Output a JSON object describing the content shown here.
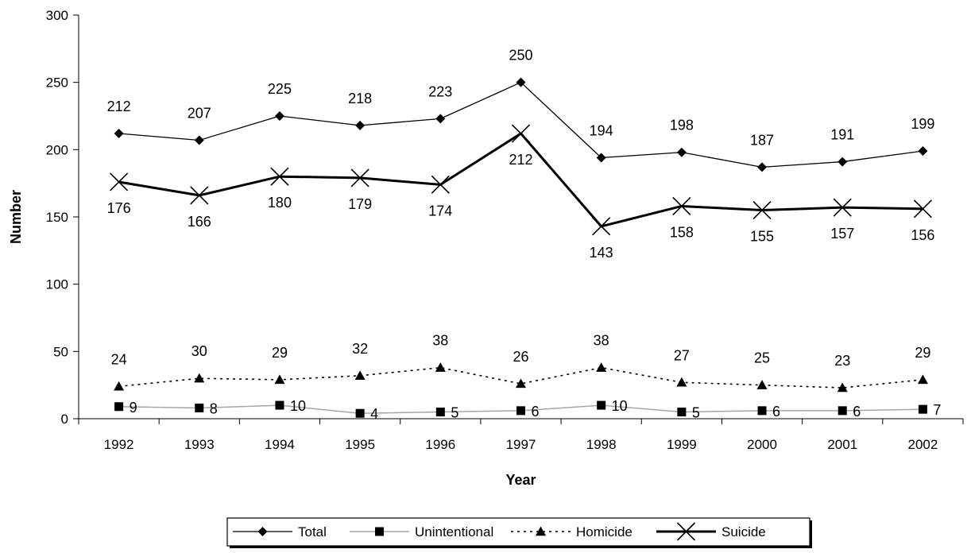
{
  "chart_data": {
    "type": "line",
    "title": "",
    "xlabel": "Year",
    "ylabel": "Number",
    "ylim": [
      0,
      300
    ],
    "yticks": [
      0,
      50,
      100,
      150,
      200,
      250,
      300
    ],
    "grid": false,
    "legend_position": "bottom",
    "categories": [
      "1992",
      "1993",
      "1994",
      "1995",
      "1996",
      "1997",
      "1998",
      "1999",
      "2000",
      "2001",
      "2002"
    ],
    "series": [
      {
        "name": "Total",
        "values": [
          212,
          207,
          225,
          218,
          223,
          250,
          194,
          198,
          187,
          191,
          199
        ],
        "color": "#000000",
        "marker": "diamond",
        "line_style": "solid-thin",
        "label_position": "above"
      },
      {
        "name": "Unintentional",
        "values": [
          9,
          8,
          10,
          4,
          5,
          6,
          10,
          5,
          6,
          6,
          7
        ],
        "color": "#a6a6a6",
        "marker": "square",
        "line_style": "solid-gray",
        "label_position": "right"
      },
      {
        "name": "Homicide",
        "values": [
          24,
          30,
          29,
          32,
          38,
          26,
          38,
          27,
          25,
          23,
          29
        ],
        "color": "#000000",
        "marker": "triangle",
        "line_style": "dotted",
        "label_position": "above"
      },
      {
        "name": "Suicide",
        "values": [
          176,
          166,
          180,
          179,
          174,
          212,
          143,
          158,
          155,
          157,
          156
        ],
        "color": "#000000",
        "marker": "x",
        "line_style": "solid-thick",
        "label_position": "below"
      }
    ]
  }
}
